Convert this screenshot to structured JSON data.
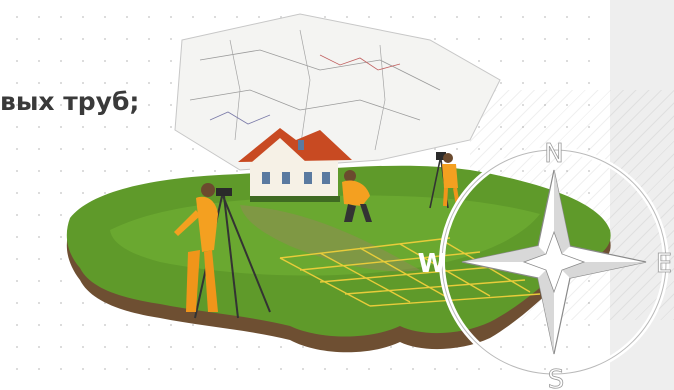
{
  "heading": {
    "fragment_text": "вых труб;"
  },
  "illustration": {
    "compass": {
      "north": "N",
      "south": "S",
      "west": "W",
      "east": "E"
    }
  },
  "colors": {
    "heading": "#3a3a3a",
    "grass": "#5f9a2a",
    "soil": "#7a5a3a",
    "worker_suit": "#f4a020",
    "roof": "#c84a22",
    "grid_lines": "#e8cc3a",
    "panel": "#eeeeee"
  },
  "icons": [
    "house-icon",
    "surveyor-figure",
    "tripod-icon",
    "compass-rose-icon",
    "survey-map-sheet"
  ]
}
